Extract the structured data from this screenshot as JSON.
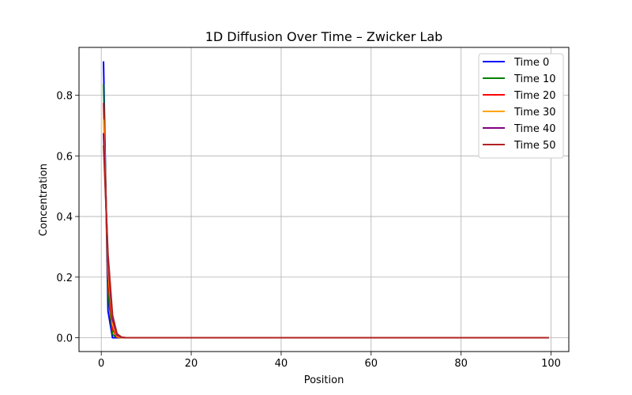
{
  "chart_data": {
    "type": "line",
    "title": "1D Diffusion Over Time – Zwicker Lab",
    "xlabel": "Position",
    "ylabel": "Concentration",
    "xlim": [
      -4.95,
      103.95
    ],
    "ylim": [
      -0.0456,
      0.958
    ],
    "xticks": [
      0,
      20,
      40,
      60,
      80,
      100
    ],
    "yticks": [
      0.0,
      0.2,
      0.4,
      0.6,
      0.8
    ],
    "ytick_labels": [
      "0.0",
      "0.2",
      "0.4",
      "0.6",
      "0.8"
    ],
    "grid": true,
    "legend_position": "top-right",
    "x_start": 0.5,
    "x_step": 1.0,
    "x_end": 99.5,
    "series": [
      {
        "name": "Time 0",
        "color": "#0000ff",
        "values": [
          0.912,
          0.088,
          0.0,
          0.0,
          0.0,
          0.0
        ]
      },
      {
        "name": "Time 10",
        "color": "#008000",
        "values": [
          0.838,
          0.15,
          0.011,
          0.001,
          0.0,
          0.0
        ]
      },
      {
        "name": "Time 20",
        "color": "#ff0000",
        "values": [
          0.775,
          0.195,
          0.028,
          0.002,
          0.0,
          0.0
        ]
      },
      {
        "name": "Time 30",
        "color": "#ffa500",
        "values": [
          0.72,
          0.23,
          0.045,
          0.005,
          0.0,
          0.0
        ]
      },
      {
        "name": "Time 40",
        "color": "#800080",
        "values": [
          0.675,
          0.255,
          0.06,
          0.009,
          0.001,
          0.0
        ]
      },
      {
        "name": "Time 50",
        "color": "#b22222",
        "values": [
          0.635,
          0.275,
          0.075,
          0.013,
          0.002,
          0.0
        ]
      }
    ]
  }
}
